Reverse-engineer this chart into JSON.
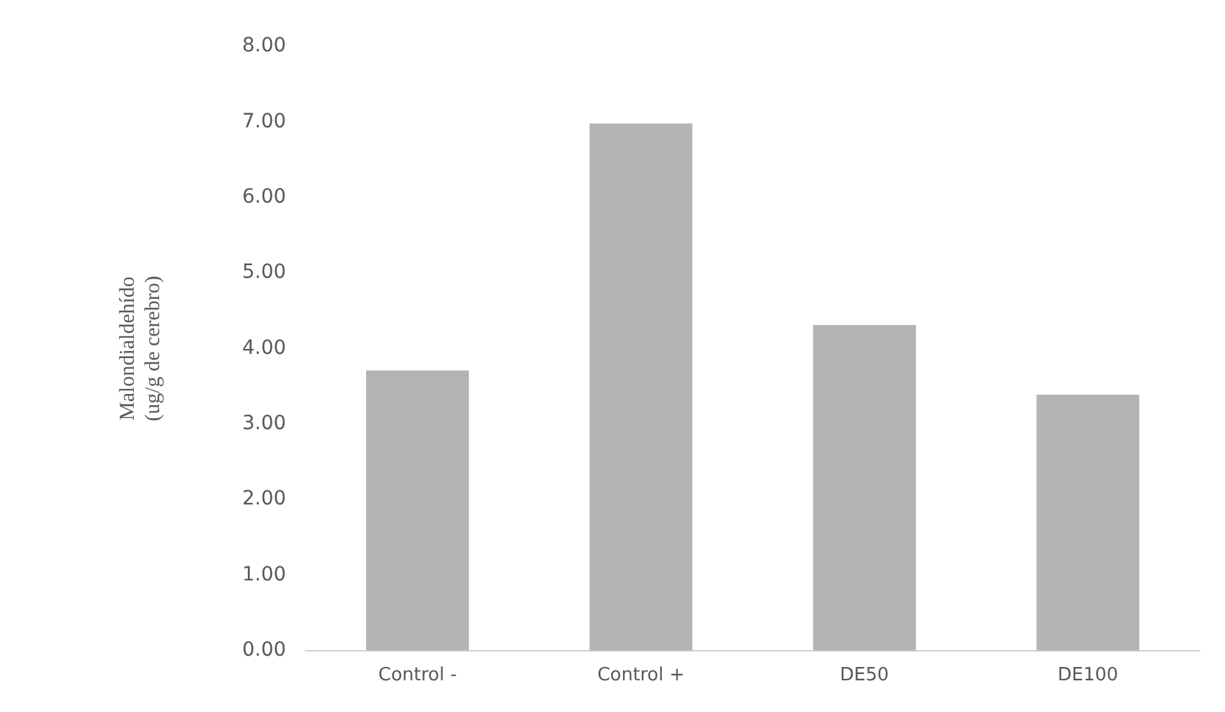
{
  "chart_data": {
    "type": "bar",
    "ylabel": "Malondialdehído\n(ug/g de cerebro)",
    "categories": [
      "Control -",
      "Control +",
      "DE50",
      "DE100"
    ],
    "values": [
      3.71,
      6.98,
      4.31,
      3.39
    ],
    "color": "#b4b4b4",
    "ylim": [
      0,
      8
    ],
    "yticks": [
      {
        "value": 0,
        "label": "0.00"
      },
      {
        "value": 1,
        "label": "1.00"
      },
      {
        "value": 2,
        "label": "2.00"
      },
      {
        "value": 3,
        "label": "3.00"
      },
      {
        "value": 4,
        "label": "4.00"
      },
      {
        "value": 5,
        "label": "5.00"
      },
      {
        "value": 6,
        "label": "6.00"
      },
      {
        "value": 7,
        "label": "7.00"
      },
      {
        "value": 8,
        "label": "8.00"
      }
    ],
    "grid": false,
    "legend": false
  }
}
